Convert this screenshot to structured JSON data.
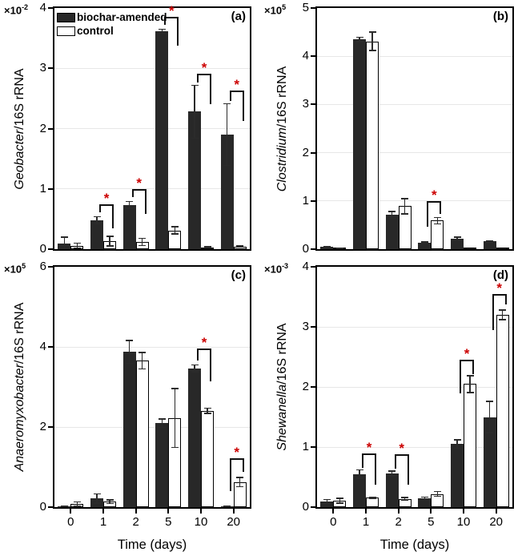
{
  "figure": {
    "legend": {
      "biochar_label": "biochar-amended",
      "control_label": "control"
    },
    "star_symbol": "*",
    "colors": {
      "bar_fill": "#282828",
      "control_fill": "#ffffff",
      "bar_stroke": "#000000",
      "error": "#2b2b2b",
      "grid": "#e7e7e7",
      "star": "#cc0000",
      "text": "#000000"
    }
  },
  "chart_data": [
    {
      "type": "bar",
      "panel": "(a)",
      "ylabel_genus": "Geobacter",
      "ylabel_rest": "/16S rRNA",
      "scale_base": "×10",
      "scale_exp": "-2",
      "categories": [
        "0",
        "1",
        "2",
        "5",
        "10",
        "20"
      ],
      "ylim": [
        0,
        4
      ],
      "yticks": [
        0,
        1,
        2,
        3,
        4
      ],
      "grid": true,
      "legend_position": "top-left",
      "series": [
        {
          "name": "biochar-amended",
          "values": [
            0.09,
            0.48,
            0.73,
            3.62,
            2.28,
            1.9
          ],
          "errors": [
            0.12,
            0.07,
            0.07,
            0.04,
            0.45,
            0.52
          ]
        },
        {
          "name": "control",
          "values": [
            0.06,
            0.13,
            0.12,
            0.31,
            0.03,
            0.04
          ],
          "errors": [
            0.05,
            0.09,
            0.07,
            0.07,
            0.02,
            0.02
          ]
        }
      ],
      "significance": [
        {
          "group": 1,
          "top": 0.75,
          "left_leg": 0.61,
          "right_leg": 0.35
        },
        {
          "group": 2,
          "top": 1.0,
          "left_leg": 0.86,
          "right_leg": 0.59
        },
        {
          "group": 3,
          "top": 3.86,
          "left_leg": 3.72,
          "right_leg": 3.37
        },
        {
          "group": 4,
          "top": 2.91,
          "left_leg": 2.76,
          "right_leg": 2.4
        },
        {
          "group": 5,
          "top": 2.63,
          "left_leg": 2.46,
          "right_leg": 2.12
        }
      ]
    },
    {
      "type": "bar",
      "panel": "(b)",
      "ylabel_genus": "Clostridium",
      "ylabel_rest": "/16S rRNA",
      "scale_base": "×10",
      "scale_exp": "5",
      "categories": [
        "0",
        "1",
        "2",
        "5",
        "10",
        "20"
      ],
      "ylim": [
        0,
        5
      ],
      "yticks": [
        0,
        1,
        2,
        3,
        4,
        5
      ],
      "grid": true,
      "series": [
        {
          "name": "biochar-amended",
          "values": [
            0.05,
            4.35,
            0.71,
            0.14,
            0.22,
            0.16
          ],
          "errors": [
            0.01,
            0.06,
            0.08,
            0.02,
            0.04,
            0.02
          ]
        },
        {
          "name": "control",
          "values": [
            0.02,
            4.31,
            0.89,
            0.59,
            0.01,
            0.01
          ],
          "errors": [
            0.01,
            0.2,
            0.17,
            0.08,
            0.01,
            0.01
          ]
        }
      ],
      "significance": [
        {
          "group": 3,
          "top": 1.0,
          "left_leg": 0.46,
          "right_leg": 0.73
        }
      ]
    },
    {
      "type": "bar",
      "panel": "(c)",
      "ylabel_genus": "Anaeromyxobacter",
      "ylabel_rest": "/16S rRNA",
      "scale_base": "×10",
      "scale_exp": "5",
      "categories": [
        "0",
        "1",
        "2",
        "5",
        "10",
        "20"
      ],
      "xlabel": "Time (days)",
      "ylim": [
        0,
        6
      ],
      "yticks": [
        0,
        2,
        4,
        6
      ],
      "grid": true,
      "series": [
        {
          "name": "biochar-amended",
          "values": [
            0.03,
            0.22,
            3.88,
            2.1,
            3.47,
            0.02
          ],
          "errors": [
            0.02,
            0.13,
            0.3,
            0.12,
            0.1,
            0.01
          ]
        },
        {
          "name": "control",
          "values": [
            0.08,
            0.14,
            3.66,
            2.23,
            2.41,
            0.63
          ],
          "errors": [
            0.07,
            0.06,
            0.22,
            0.75,
            0.08,
            0.13
          ]
        }
      ],
      "significance": [
        {
          "group": 4,
          "top": 3.97,
          "left_leg": 3.66,
          "right_leg": 3.15
        },
        {
          "group": 5,
          "top": 1.23,
          "left_leg": 0.41,
          "right_leg": 0.88
        }
      ]
    },
    {
      "type": "bar",
      "panel": "(d)",
      "ylabel_genus": "Shewanella",
      "ylabel_rest": "/16S rRNA",
      "scale_base": "×10",
      "scale_exp": "-3",
      "categories": [
        "0",
        "1",
        "2",
        "5",
        "10",
        "20"
      ],
      "xlabel": "Time (days)",
      "ylim": [
        0,
        4
      ],
      "yticks": [
        0,
        1,
        2,
        3,
        4
      ],
      "grid": true,
      "series": [
        {
          "name": "biochar-amended",
          "values": [
            0.1,
            0.55,
            0.56,
            0.15,
            1.05,
            1.5
          ],
          "errors": [
            0.04,
            0.08,
            0.05,
            0.03,
            0.08,
            0.27
          ]
        },
        {
          "name": "control",
          "values": [
            0.11,
            0.16,
            0.14,
            0.22,
            2.05,
            3.2
          ],
          "errors": [
            0.05,
            0.02,
            0.03,
            0.05,
            0.15,
            0.09
          ]
        }
      ],
      "significance": [
        {
          "group": 1,
          "top": 0.9,
          "left_leg": 0.65,
          "right_leg": 0.38
        },
        {
          "group": 2,
          "top": 0.88,
          "left_leg": 0.64,
          "right_leg": 0.37
        },
        {
          "group": 4,
          "top": 2.45,
          "left_leg": 1.9,
          "right_leg": 2.22
        },
        {
          "group": 5,
          "top": 3.55,
          "left_leg": 2.95,
          "right_leg": 3.38
        }
      ]
    }
  ]
}
